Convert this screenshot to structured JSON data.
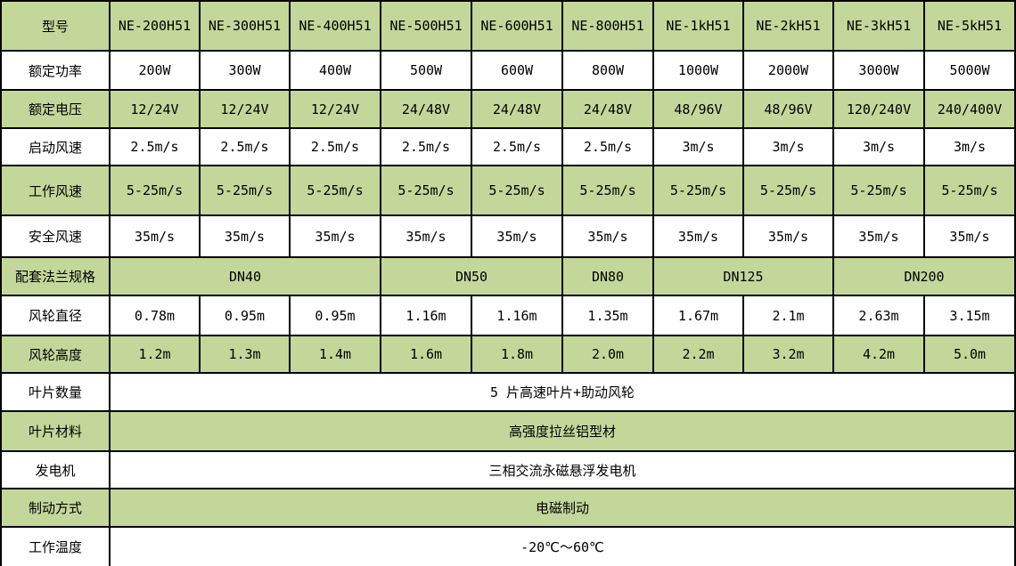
{
  "colors": {
    "row_green": "#c4d79b",
    "row_white": "#ffffff",
    "border": "#000000",
    "text": "#000000"
  },
  "table": {
    "rows": [
      {
        "key": "model",
        "shade": "green",
        "label": "型号",
        "values": [
          "NE-200H51",
          "NE-300H51",
          "NE-400H51",
          "NE-500H51",
          "NE-600H51",
          "NE-800H51",
          "NE-1kH51",
          "NE-2kH51",
          "NE-3kH51",
          "NE-5kH51"
        ]
      },
      {
        "key": "rated-power",
        "shade": "white",
        "label": "额定功率",
        "values": [
          "200W",
          "300W",
          "400W",
          "500W",
          "600W",
          "800W",
          "1000W",
          "2000W",
          "3000W",
          "5000W"
        ]
      },
      {
        "key": "rated-voltage",
        "shade": "green",
        "label": "额定电压",
        "values": [
          "12/24V",
          "12/24V",
          "12/24V",
          "24/48V",
          "24/48V",
          "24/48V",
          "48/96V",
          "48/96V",
          "120/240V",
          "240/400V"
        ]
      },
      {
        "key": "startup-wind-speed",
        "shade": "white",
        "label": "启动风速",
        "values": [
          "2.5m/s",
          "2.5m/s",
          "2.5m/s",
          "2.5m/s",
          "2.5m/s",
          "2.5m/s",
          "3m/s",
          "3m/s",
          "3m/s",
          "3m/s"
        ]
      },
      {
        "key": "working-wind-speed",
        "shade": "green",
        "label": "工作风速",
        "values": [
          "5-25m/s",
          "5-25m/s",
          "5-25m/s",
          "5-25m/s",
          "5-25m/s",
          "5-25m/s",
          "5-25m/s",
          "5-25m/s",
          "5-25m/s",
          "5-25m/s"
        ]
      },
      {
        "key": "safety-wind-speed",
        "shade": "white",
        "label": "安全风速",
        "values": [
          "35m/s",
          "35m/s",
          "35m/s",
          "35m/s",
          "35m/s",
          "35m/s",
          "35m/s",
          "35m/s",
          "35m/s",
          "35m/s"
        ]
      },
      {
        "key": "flange-spec",
        "shade": "green",
        "label": "配套法兰规格",
        "spans": [
          {
            "text": "DN40",
            "cols": 3
          },
          {
            "text": "DN50",
            "cols": 2
          },
          {
            "text": "DN80",
            "cols": 1
          },
          {
            "text": "DN125",
            "cols": 2
          },
          {
            "text": "DN200",
            "cols": 2
          }
        ]
      },
      {
        "key": "rotor-diameter",
        "shade": "white",
        "label": "风轮直径",
        "values": [
          "0.78m",
          "0.95m",
          "0.95m",
          "1.16m",
          "1.16m",
          "1.35m",
          "1.67m",
          "2.1m",
          "2.63m",
          "3.15m"
        ]
      },
      {
        "key": "rotor-height",
        "shade": "green",
        "label": "风轮高度",
        "values": [
          "1.2m",
          "1.3m",
          "1.4m",
          "1.6m",
          "1.8m",
          "2.0m",
          "2.2m",
          "3.2m",
          "4.2m",
          "5.0m"
        ]
      },
      {
        "key": "blade-count",
        "shade": "white",
        "label": "叶片数量",
        "value": "5 片高速叶片+助动风轮"
      },
      {
        "key": "blade-material",
        "shade": "green",
        "label": "叶片材料",
        "value": "高强度拉丝铝型材"
      },
      {
        "key": "generator",
        "shade": "white",
        "label": "发电机",
        "value": "三相交流永磁悬浮发电机"
      },
      {
        "key": "braking-method",
        "shade": "green",
        "label": "制动方式",
        "value": "电磁制动"
      },
      {
        "key": "working-temperature",
        "shade": "white",
        "label": "工作温度",
        "value": "-20℃～60℃"
      }
    ]
  }
}
